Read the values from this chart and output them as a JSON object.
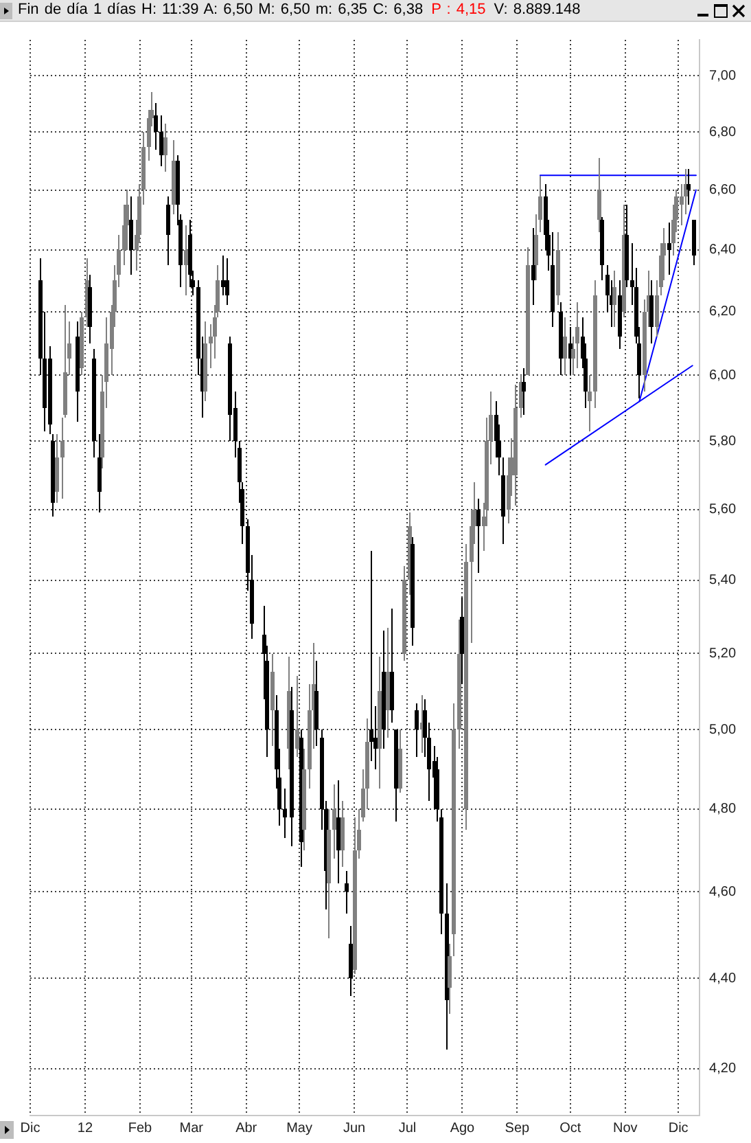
{
  "chart_data": {
    "type": "candlestick",
    "title": "Fin de día 1 días H: 11:39 A: 6,50 M: 6,50 m: 6,35 C: 6,38",
    "subtitle": "P : 4,15",
    "annotations": [
      "V: 8.889.148"
    ],
    "x": [
      "2011-12-07",
      "2011-12-09",
      "2011-12-12",
      "2011-12-14",
      "2011-12-16",
      "2011-12-19",
      "2011-12-21",
      "2011-12-23",
      "2011-12-28",
      "2011-12-30",
      "2012-01-02",
      "2012-01-04",
      "2012-01-06",
      "2012-01-09",
      "2012-01-11",
      "2012-01-13",
      "2012-01-16",
      "2012-01-18",
      "2012-01-20",
      "2012-01-23",
      "2012-01-25",
      "2012-01-27",
      "2012-01-30",
      "2012-02-01",
      "2012-02-03",
      "2012-02-06",
      "2012-02-08",
      "2012-02-10",
      "2012-02-13",
      "2012-02-15",
      "2012-02-17",
      "2012-02-20",
      "2012-02-22",
      "2012-02-24",
      "2012-02-27",
      "2012-02-29",
      "2012-03-02",
      "2012-03-05",
      "2012-03-07",
      "2012-03-09",
      "2012-03-12",
      "2012-03-14",
      "2012-03-16",
      "2012-03-19",
      "2012-03-21",
      "2012-03-23",
      "2012-03-26",
      "2012-03-28",
      "2012-03-30",
      "2012-04-02",
      "2012-04-04",
      "2012-04-11",
      "2012-04-13",
      "2012-04-16",
      "2012-04-18",
      "2012-04-20",
      "2012-04-23",
      "2012-04-25",
      "2012-04-27",
      "2012-04-30",
      "2012-05-02",
      "2012-05-04",
      "2012-05-07",
      "2012-05-09",
      "2012-05-11",
      "2012-05-14",
      "2012-05-16",
      "2012-05-18",
      "2012-05-21",
      "2012-05-23",
      "2012-05-25",
      "2012-05-28",
      "2012-05-30",
      "2012-06-01",
      "2012-06-04",
      "2012-06-06",
      "2012-06-08",
      "2012-06-11",
      "2012-06-13",
      "2012-06-15",
      "2012-06-18",
      "2012-06-20",
      "2012-06-22",
      "2012-06-25",
      "2012-06-27",
      "2012-06-29",
      "2012-07-02",
      "2012-07-04",
      "2012-07-06",
      "2012-07-09",
      "2012-07-11",
      "2012-07-13",
      "2012-07-16",
      "2012-07-18",
      "2012-07-20",
      "2012-07-23",
      "2012-07-25",
      "2012-07-27",
      "2012-07-30",
      "2012-08-01",
      "2012-08-03",
      "2012-08-06",
      "2012-08-08",
      "2012-08-10",
      "2012-08-13",
      "2012-08-15",
      "2012-08-17",
      "2012-08-20",
      "2012-08-22",
      "2012-08-24",
      "2012-08-27",
      "2012-08-29",
      "2012-08-31",
      "2012-09-03",
      "2012-09-05",
      "2012-09-07",
      "2012-09-10",
      "2012-09-12",
      "2012-09-14",
      "2012-09-17",
      "2012-09-19",
      "2012-09-21",
      "2012-09-24",
      "2012-09-26",
      "2012-09-28",
      "2012-10-01",
      "2012-10-03",
      "2012-10-05",
      "2012-10-08",
      "2012-10-10",
      "2012-10-12",
      "2012-10-15",
      "2012-10-17",
      "2012-10-19",
      "2012-10-22",
      "2012-10-24",
      "2012-10-26",
      "2012-10-29",
      "2012-10-31",
      "2012-11-02",
      "2012-11-05",
      "2012-11-07",
      "2012-11-09",
      "2012-11-12",
      "2012-11-14",
      "2012-11-16",
      "2012-11-19",
      "2012-11-21",
      "2012-11-23",
      "2012-11-26",
      "2012-11-28",
      "2012-11-30",
      "2012-12-03",
      "2012-12-05",
      "2012-12-07",
      "2012-12-10"
    ],
    "ohlc": [
      [
        6.3,
        6.37,
        6.0,
        6.05
      ],
      [
        6.05,
        6.2,
        5.83,
        5.9
      ],
      [
        6.05,
        6.09,
        5.82,
        5.85
      ],
      [
        5.8,
        5.82,
        5.58,
        5.62
      ],
      [
        5.65,
        5.82,
        5.62,
        5.75
      ],
      [
        5.75,
        5.87,
        5.63,
        5.8
      ],
      [
        5.88,
        6.22,
        5.87,
        6.01
      ],
      [
        6.05,
        6.17,
        6.0,
        6.1
      ],
      [
        6.12,
        6.17,
        5.86,
        5.95
      ],
      [
        6.02,
        6.2,
        6.0,
        6.18
      ],
      [
        6.18,
        6.37,
        6.15,
        6.3
      ],
      [
        6.28,
        6.32,
        6.1,
        6.15
      ],
      [
        6.05,
        6.08,
        5.75,
        5.8
      ],
      [
        5.75,
        5.82,
        5.59,
        5.65
      ],
      [
        5.75,
        6.0,
        5.72,
        5.95
      ],
      [
        5.98,
        6.18,
        5.9,
        6.1
      ],
      [
        6.08,
        6.22,
        6.0,
        6.2
      ],
      [
        6.2,
        6.35,
        6.15,
        6.3
      ],
      [
        6.32,
        6.45,
        6.28,
        6.4
      ],
      [
        6.4,
        6.55,
        6.35,
        6.48
      ],
      [
        6.48,
        6.6,
        6.4,
        6.55
      ],
      [
        6.5,
        6.58,
        6.32,
        6.4
      ],
      [
        6.4,
        6.5,
        6.33,
        6.45
      ],
      [
        6.45,
        6.62,
        6.42,
        6.58
      ],
      [
        6.6,
        6.8,
        6.55,
        6.75
      ],
      [
        6.75,
        6.88,
        6.7,
        6.85
      ],
      [
        6.85,
        6.94,
        6.82,
        6.88
      ],
      [
        6.86,
        6.9,
        6.74,
        6.8
      ],
      [
        6.8,
        6.86,
        6.68,
        6.72
      ],
      [
        6.72,
        6.83,
        6.66,
        6.78
      ],
      [
        6.55,
        6.58,
        6.35,
        6.45
      ],
      [
        6.55,
        6.77,
        6.52,
        6.7
      ],
      [
        6.7,
        6.72,
        6.48,
        6.55
      ],
      [
        6.5,
        6.52,
        6.28,
        6.35
      ],
      [
        6.35,
        6.48,
        6.25,
        6.4
      ],
      [
        6.45,
        6.5,
        6.28,
        6.32
      ],
      [
        6.3,
        6.33,
        6.25,
        6.28
      ],
      [
        6.28,
        6.3,
        6.0,
        6.05
      ],
      [
        6.05,
        6.12,
        5.87,
        5.95
      ],
      [
        5.95,
        6.17,
        5.92,
        6.1
      ],
      [
        6.1,
        6.16,
        6.02,
        6.12
      ],
      [
        6.12,
        6.22,
        6.05,
        6.18
      ],
      [
        6.2,
        6.35,
        6.18,
        6.3
      ],
      [
        6.3,
        6.38,
        6.25,
        6.28
      ],
      [
        6.3,
        6.37,
        6.22,
        6.25
      ],
      [
        6.1,
        6.12,
        5.8,
        5.88
      ],
      [
        5.9,
        5.95,
        5.75,
        5.8
      ],
      [
        5.78,
        5.8,
        5.62,
        5.68
      ],
      [
        5.66,
        5.68,
        5.5,
        5.55
      ],
      [
        5.55,
        5.57,
        5.37,
        5.42
      ],
      [
        5.4,
        5.47,
        5.24,
        5.28
      ],
      [
        5.25,
        5.33,
        5.08,
        5.2
      ],
      [
        5.18,
        5.22,
        4.93,
        5.0
      ],
      [
        5.05,
        5.2,
        4.96,
        5.15
      ],
      [
        5.05,
        5.09,
        4.85,
        4.9
      ],
      [
        4.88,
        4.95,
        4.76,
        4.8
      ],
      [
        4.8,
        4.85,
        4.73,
        4.78
      ],
      [
        4.95,
        5.19,
        4.9,
        5.1
      ],
      [
        5.05,
        5.11,
        4.71,
        4.78
      ],
      [
        4.95,
        5.14,
        4.93,
        5.0
      ],
      [
        4.98,
        5.0,
        4.66,
        4.72
      ],
      [
        4.75,
        4.95,
        4.7,
        4.9
      ],
      [
        4.9,
        5.12,
        4.85,
        5.05
      ],
      [
        5.05,
        5.23,
        4.95,
        5.12
      ],
      [
        5.1,
        5.18,
        4.96,
        5.0
      ],
      [
        4.98,
        5.0,
        4.75,
        4.8
      ],
      [
        4.8,
        4.82,
        4.56,
        4.65
      ],
      [
        4.62,
        4.8,
        4.49,
        4.75
      ],
      [
        4.75,
        4.86,
        4.68,
        4.8
      ],
      [
        4.78,
        4.87,
        4.62,
        4.7
      ],
      [
        4.7,
        4.82,
        4.66,
        4.78
      ],
      [
        4.62,
        4.65,
        4.55,
        4.6
      ],
      [
        4.48,
        4.52,
        4.36,
        4.4
      ],
      [
        4.42,
        4.78,
        4.41,
        4.7
      ],
      [
        4.7,
        4.8,
        4.68,
        4.75
      ],
      [
        4.78,
        4.9,
        4.77,
        4.85
      ],
      [
        4.85,
        5.03,
        4.8,
        4.97
      ],
      [
        5.0,
        5.48,
        4.92,
        4.97
      ],
      [
        4.98,
        5.06,
        4.9,
        4.95
      ],
      [
        4.95,
        5.19,
        4.85,
        5.1
      ],
      [
        5.15,
        5.26,
        4.95,
        5.0
      ],
      [
        5.05,
        5.27,
        4.98,
        5.15
      ],
      [
        5.15,
        5.32,
        5.02,
        5.05
      ],
      [
        5.0,
        5.0,
        4.77,
        4.85
      ],
      [
        4.85,
        5.0,
        4.84,
        4.95
      ],
      [
        5.2,
        5.44,
        5.18,
        5.4
      ],
      [
        5.4,
        5.59,
        5.36,
        5.55
      ],
      [
        5.5,
        5.52,
        5.22,
        5.27
      ],
      [
        5.05,
        5.07,
        4.93,
        5.0
      ],
      [
        5.0,
        5.09,
        4.94,
        5.02
      ],
      [
        5.05,
        5.08,
        4.93,
        4.98
      ],
      [
        4.98,
        5.02,
        4.82,
        4.9
      ],
      [
        4.92,
        4.96,
        4.8,
        4.88
      ],
      [
        4.9,
        4.93,
        4.77,
        4.8
      ],
      [
        4.78,
        4.8,
        4.5,
        4.55
      ],
      [
        4.55,
        4.62,
        4.24,
        4.35
      ],
      [
        4.38,
        4.48,
        4.32,
        4.45
      ],
      [
        4.5,
        5.07,
        4.45,
        5.0
      ],
      [
        5.0,
        5.29,
        4.95,
        5.2
      ],
      [
        5.3,
        5.35,
        5.12,
        5.2
      ],
      [
        4.8,
        5.5,
        4.75,
        5.45
      ],
      [
        5.45,
        5.6,
        5.23,
        5.55
      ],
      [
        5.55,
        5.68,
        5.5,
        5.6
      ],
      [
        5.6,
        5.63,
        5.42,
        5.55
      ],
      [
        5.55,
        5.62,
        5.48,
        5.58
      ],
      [
        5.6,
        5.87,
        5.55,
        5.8
      ],
      [
        5.8,
        5.95,
        5.73,
        5.88
      ],
      [
        5.88,
        5.92,
        5.75,
        5.8
      ],
      [
        5.8,
        5.85,
        5.7,
        5.75
      ],
      [
        5.7,
        5.75,
        5.5,
        5.58
      ],
      [
        5.6,
        5.75,
        5.56,
        5.7
      ],
      [
        5.7,
        5.81,
        5.64,
        5.75
      ],
      [
        5.7,
        5.97,
        5.61,
        5.9
      ],
      [
        5.9,
        6.0,
        5.87,
        5.98
      ],
      [
        5.98,
        6.02,
        5.88,
        5.95
      ],
      [
        6.0,
        6.41,
        6.0,
        6.35
      ],
      [
        6.35,
        6.47,
        6.22,
        6.3
      ],
      [
        6.35,
        6.52,
        6.3,
        6.45
      ],
      [
        6.5,
        6.65,
        6.46,
        6.58
      ],
      [
        6.58,
        6.62,
        6.4,
        6.45
      ],
      [
        6.45,
        6.5,
        6.33,
        6.38
      ],
      [
        6.35,
        6.46,
        6.15,
        6.2
      ],
      [
        6.25,
        6.46,
        6.22,
        6.4
      ],
      [
        6.2,
        6.23,
        6.0,
        6.05
      ],
      [
        6.05,
        6.18,
        6.0,
        6.12
      ],
      [
        6.1,
        6.15,
        6.0,
        6.05
      ],
      [
        6.05,
        6.12,
        6.0,
        6.08
      ],
      [
        6.1,
        6.23,
        6.02,
        6.15
      ],
      [
        6.12,
        6.18,
        6.02,
        6.05
      ],
      [
        6.05,
        6.1,
        5.9,
        5.95
      ],
      [
        5.92,
        6.0,
        5.83,
        5.95
      ],
      [
        5.95,
        6.3,
        5.9,
        6.25
      ],
      [
        6.5,
        6.71,
        6.46,
        6.6
      ],
      [
        6.5,
        6.51,
        6.3,
        6.35
      ],
      [
        6.32,
        6.35,
        6.2,
        6.25
      ],
      [
        6.25,
        6.3,
        6.15,
        6.22
      ],
      [
        6.22,
        6.33,
        6.15,
        6.28
      ],
      [
        6.25,
        6.3,
        6.08,
        6.12
      ],
      [
        6.2,
        6.55,
        6.18,
        6.45
      ],
      [
        6.45,
        6.55,
        6.28,
        6.3
      ],
      [
        6.3,
        6.42,
        6.22,
        6.28
      ],
      [
        6.28,
        6.34,
        6.1,
        6.12
      ],
      [
        6.1,
        6.15,
        5.93,
        6.0
      ],
      [
        6.0,
        6.24,
        5.95,
        6.2
      ],
      [
        6.2,
        6.33,
        6.15,
        6.25
      ],
      [
        6.25,
        6.3,
        6.1,
        6.15
      ],
      [
        6.15,
        6.3,
        6.12,
        6.25
      ],
      [
        6.28,
        6.42,
        6.25,
        6.38
      ],
      [
        6.38,
        6.47,
        6.3,
        6.42
      ],
      [
        6.42,
        6.49,
        6.32,
        6.4
      ],
      [
        6.42,
        6.55,
        6.38,
        6.5
      ],
      [
        6.5,
        6.6,
        6.46,
        6.58
      ],
      [
        6.55,
        6.62,
        6.48,
        6.58
      ],
      [
        6.58,
        6.67,
        6.52,
        6.62
      ],
      [
        6.62,
        6.67,
        6.55,
        6.6
      ],
      [
        6.5,
        6.5,
        6.35,
        6.38
      ]
    ],
    "colors": [
      "#000000",
      "#000000",
      "#000000",
      "#000000",
      "#808080",
      "#808080",
      "#808080",
      "#808080",
      "#000000",
      "#808080",
      "#808080",
      "#000000",
      "#000000",
      "#000000",
      "#808080",
      "#808080",
      "#808080",
      "#808080",
      "#808080",
      "#808080",
      "#808080",
      "#000000",
      "#808080",
      "#808080",
      "#808080",
      "#808080",
      "#808080",
      "#000000",
      "#000000",
      "#808080",
      "#000000",
      "#808080",
      "#000000",
      "#000000",
      "#808080",
      "#000000",
      "#000000",
      "#000000",
      "#000000",
      "#808080",
      "#808080",
      "#808080",
      "#808080",
      "#000000",
      "#000000",
      "#000000",
      "#000000",
      "#000000",
      "#000000",
      "#000000",
      "#000000",
      "#000000",
      "#000000",
      "#808080",
      "#000000",
      "#000000",
      "#000000",
      "#808080",
      "#000000",
      "#808080",
      "#000000",
      "#808080",
      "#808080",
      "#808080",
      "#000000",
      "#000000",
      "#000000",
      "#808080",
      "#808080",
      "#000000",
      "#808080",
      "#000000",
      "#000000",
      "#808080",
      "#808080",
      "#808080",
      "#808080",
      "#000000",
      "#000000",
      "#808080",
      "#000000",
      "#808080",
      "#000000",
      "#000000",
      "#808080",
      "#808080",
      "#808080",
      "#000000",
      "#000000",
      "#808080",
      "#000000",
      "#000000",
      "#000000",
      "#000000",
      "#000000",
      "#000000",
      "#808080",
      "#808080",
      "#808080",
      "#000000",
      "#808080",
      "#808080",
      "#808080",
      "#000000",
      "#808080",
      "#808080",
      "#808080",
      "#000000",
      "#000000",
      "#000000",
      "#808080",
      "#808080",
      "#808080",
      "#808080",
      "#000000",
      "#808080",
      "#000000",
      "#808080",
      "#808080",
      "#000000",
      "#000000",
      "#000000",
      "#808080",
      "#000000",
      "#808080",
      "#000000",
      "#808080",
      "#808080",
      "#000000",
      "#000000",
      "#808080",
      "#808080",
      "#808080",
      "#000000",
      "#000000",
      "#000000",
      "#808080",
      "#000000",
      "#808080",
      "#000000",
      "#000000",
      "#000000",
      "#000000",
      "#808080",
      "#808080",
      "#000000",
      "#808080",
      "#808080",
      "#808080",
      "#000000",
      "#808080",
      "#808080",
      "#808080",
      "#808080",
      "#000000",
      "#000000"
    ],
    "series": [
      {
        "type": "line",
        "color": "#0000ff",
        "x": [
          "2012-09-14",
          "2012-12-11"
        ],
        "values": [
          6.65,
          6.65
        ]
      },
      {
        "type": "line",
        "color": "#0000ff",
        "x": [
          "2012-09-17",
          "2012-12-09"
        ],
        "values": [
          5.73,
          6.03
        ]
      },
      {
        "type": "line",
        "color": "#0000ff",
        "x": [
          "2012-11-09",
          "2012-12-11"
        ],
        "values": [
          5.92,
          6.6
        ]
      }
    ],
    "xlim": [
      "2011-12-01",
      "2012-12-13"
    ],
    "xticks": [
      {
        "value": "2011-12-01",
        "label": "Dic"
      },
      {
        "value": "2012-01-01",
        "label": "12"
      },
      {
        "value": "2012-02-01",
        "label": "Feb"
      },
      {
        "value": "2012-03-01",
        "label": "Mar"
      },
      {
        "value": "2012-04-01",
        "label": "Abr"
      },
      {
        "value": "2012-05-01",
        "label": "May"
      },
      {
        "value": "2012-06-01",
        "label": "Jun"
      },
      {
        "value": "2012-07-01",
        "label": "Jul"
      },
      {
        "value": "2012-08-01",
        "label": "Ago"
      },
      {
        "value": "2012-09-01",
        "label": "Sep"
      },
      {
        "value": "2012-10-01",
        "label": "Oct"
      },
      {
        "value": "2012-11-01",
        "label": "Nov"
      },
      {
        "value": "2012-12-01",
        "label": "Dic"
      }
    ],
    "ylim": [
      4.11,
      7.13
    ],
    "yticks": [
      {
        "value": 4.2,
        "label": "4,20"
      },
      {
        "value": 4.4,
        "label": "4,40"
      },
      {
        "value": 4.6,
        "label": "4,60"
      },
      {
        "value": 4.8,
        "label": "4,80"
      },
      {
        "value": 5.0,
        "label": "5,00"
      },
      {
        "value": 5.2,
        "label": "5,20"
      },
      {
        "value": 5.4,
        "label": "5,40"
      },
      {
        "value": 5.6,
        "label": "5,60"
      },
      {
        "value": 5.8,
        "label": "5,80"
      },
      {
        "value": 6.0,
        "label": "6,00"
      },
      {
        "value": 6.2,
        "label": "6,20"
      },
      {
        "value": 6.4,
        "label": "6,40"
      },
      {
        "value": 6.6,
        "label": "6,60"
      },
      {
        "value": 6.8,
        "label": "6,80"
      },
      {
        "value": 7.0,
        "label": "7,00"
      }
    ],
    "log": "y",
    "grid": true
  }
}
